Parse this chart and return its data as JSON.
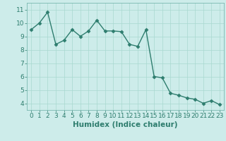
{
  "x": [
    0,
    1,
    2,
    3,
    4,
    5,
    6,
    7,
    8,
    9,
    10,
    11,
    12,
    13,
    14,
    15,
    16,
    17,
    18,
    19,
    20,
    21,
    22,
    23
  ],
  "y": [
    9.5,
    10.0,
    10.8,
    8.4,
    8.7,
    9.5,
    9.0,
    9.4,
    10.2,
    9.4,
    9.4,
    9.35,
    8.4,
    8.25,
    9.5,
    6.0,
    5.9,
    4.75,
    4.6,
    4.4,
    4.3,
    4.0,
    4.2,
    3.9
  ],
  "line_color": "#2e7d6e",
  "marker": "D",
  "markersize": 2.5,
  "linewidth": 1.0,
  "bg_color": "#cdecea",
  "grid_color": "#a8d8d0",
  "xlabel": "Humidex (Indice chaleur)",
  "ylim": [
    3.5,
    11.5
  ],
  "xlim": [
    -0.5,
    23.5
  ],
  "yticks": [
    4,
    5,
    6,
    7,
    8,
    9,
    10,
    11
  ],
  "xticks": [
    0,
    1,
    2,
    3,
    4,
    5,
    6,
    7,
    8,
    9,
    10,
    11,
    12,
    13,
    14,
    15,
    16,
    17,
    18,
    19,
    20,
    21,
    22,
    23
  ],
  "xlabel_fontsize": 7.5,
  "tick_fontsize": 6.5,
  "axis_color": "#2e7d6e",
  "spine_color": "#7ab8b0"
}
